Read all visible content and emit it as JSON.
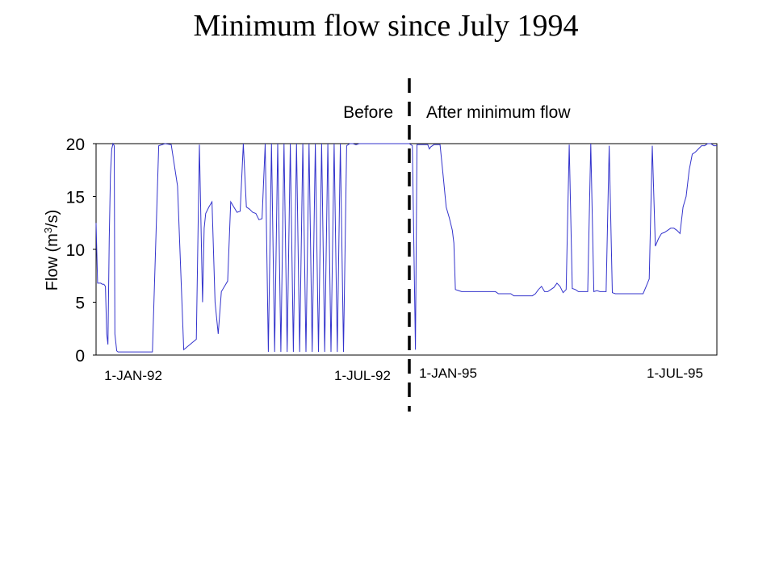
{
  "chart_data": {
    "type": "line",
    "title": "Minimum flow since July 1994",
    "ylabel": "Flow (m³/s)",
    "ylabel_parts": {
      "prefix": "Flow (m",
      "sup": "3",
      "suffix": "/s)"
    },
    "ylim": [
      0,
      20
    ],
    "yticks": [
      0,
      5,
      10,
      15,
      20
    ],
    "xtick_labels": [
      "1-JAN-92",
      "1-JUL-92",
      "1-JAN-95",
      "1-JUL-95"
    ],
    "annotations": {
      "before": "Before",
      "after": "After minimum flow"
    },
    "grid": false,
    "series": [
      {
        "color": "#3333cc",
        "x": [
          0,
          0.5,
          1,
          1.5,
          2,
          2.5,
          3,
          3.4,
          3.8,
          4.2,
          4.6,
          5,
          5.4,
          5.8,
          6,
          6.6,
          7,
          8,
          9,
          10,
          11,
          12,
          14,
          16,
          18,
          20,
          22,
          24,
          26,
          28,
          30,
          32,
          33,
          34,
          34.5,
          35,
          36,
          37,
          38,
          39,
          40,
          41,
          42,
          43,
          44,
          45,
          46,
          47,
          48,
          49,
          50,
          51,
          52,
          53,
          54,
          55,
          56,
          57,
          58,
          59,
          60,
          61,
          62,
          63,
          64,
          65,
          66,
          67,
          68,
          69,
          70,
          71,
          72,
          73,
          74,
          75,
          76,
          77,
          78,
          79,
          80,
          81,
          82,
          83,
          84,
          85,
          86,
          87,
          88,
          89,
          90,
          91,
          92,
          93,
          94,
          95,
          96,
          97,
          98,
          99,
          100
        ],
        "y": [
          12.5,
          6.8,
          6.8,
          6.8,
          6.7,
          6.7,
          6.5,
          2.0,
          1.0,
          11.0,
          17.0,
          19.5,
          20.0,
          19.8,
          2.0,
          0.4,
          0.3,
          0.3,
          0.3,
          0.3,
          0.3,
          0.3,
          0.3,
          0.3,
          0.3,
          19.8,
          20.0,
          19.9,
          16.0,
          0.5,
          1.0,
          1.5,
          19.9,
          5.0,
          12.0,
          13.4,
          14.0,
          14.5,
          5.0,
          2.0,
          6.0,
          6.5,
          7.0,
          14.5,
          14.0,
          13.5,
          13.6,
          20.0,
          14.0,
          13.8,
          13.5,
          13.4,
          12.8,
          12.9,
          20.0,
          0.3,
          20.0,
          0.3,
          20.0,
          0.3,
          20.0,
          0.3,
          20.0,
          0.3,
          20.0,
          0.3,
          20.0,
          0.3,
          20.0,
          0.3,
          20.0,
          0.3,
          20.0,
          0.3,
          20.0,
          0.3,
          20.0,
          0.3,
          20.0,
          0.3,
          19.8,
          20.0,
          20.0,
          19.9,
          20.0,
          20.0,
          20.0,
          20.0,
          20.0,
          20.0,
          20.0,
          20.0,
          20.0,
          20.0,
          20.0,
          20.0,
          20.0,
          20.0,
          20.0,
          20.0,
          20.0
        ]
      },
      {
        "color": "#3333cc",
        "x": [
          0,
          1,
          2,
          2.5,
          3,
          4,
          5,
          6,
          6.5,
          7,
          8,
          9,
          10,
          11,
          12,
          13,
          14,
          14.5,
          15,
          16,
          17,
          18,
          19,
          20,
          21,
          22,
          23,
          24,
          25,
          26,
          27,
          28,
          29,
          30,
          31,
          32,
          33,
          34,
          35,
          36,
          37,
          38,
          39,
          40,
          41,
          42,
          43,
          44,
          45,
          46,
          47,
          48,
          49,
          50,
          51,
          52,
          53,
          54,
          55,
          56,
          57,
          58,
          59,
          60,
          61,
          62,
          63,
          64,
          65,
          66,
          67,
          68,
          69,
          70,
          71,
          72,
          73,
          74,
          75,
          76,
          77,
          78,
          79,
          80,
          81,
          82,
          83,
          84,
          85,
          86,
          87,
          88,
          89,
          90,
          91,
          92,
          93,
          94,
          95,
          96,
          97,
          98,
          99,
          100
        ],
        "y": [
          20.0,
          19.8,
          0.5,
          19.9,
          19.9,
          19.9,
          19.9,
          19.9,
          19.5,
          19.7,
          19.9,
          19.9,
          19.9,
          17.0,
          14.0,
          13.0,
          11.8,
          10.6,
          6.2,
          6.1,
          6.0,
          6.0,
          6.0,
          6.0,
          6.0,
          6.0,
          6.0,
          6.0,
          6.0,
          6.0,
          6.0,
          6.0,
          5.8,
          5.8,
          5.8,
          5.8,
          5.8,
          5.6,
          5.6,
          5.6,
          5.6,
          5.6,
          5.6,
          5.6,
          5.8,
          6.2,
          6.5,
          6.0,
          6.0,
          6.2,
          6.4,
          6.8,
          6.5,
          5.9,
          6.2,
          19.9,
          6.3,
          6.2,
          6.0,
          6.0,
          6.0,
          6.0,
          20.0,
          6.0,
          6.1,
          6.0,
          6.0,
          6.0,
          19.8,
          5.9,
          5.8,
          5.8,
          5.8,
          5.8,
          5.8,
          5.8,
          5.8,
          5.8,
          5.8,
          5.8,
          6.5,
          7.2,
          19.8,
          10.3,
          11.0,
          11.5,
          11.6,
          11.8,
          12.0,
          12.0,
          11.8,
          11.5,
          14.0,
          15.0,
          17.5,
          19.0,
          19.2,
          19.5,
          19.8,
          19.8,
          20.0,
          20.0,
          19.8,
          19.8
        ]
      }
    ]
  }
}
